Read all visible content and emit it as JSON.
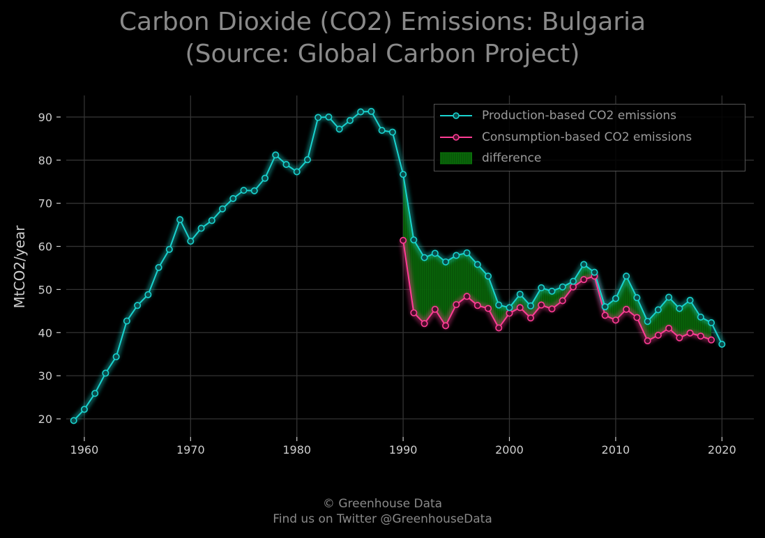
{
  "title": {
    "line1": "Carbon Dioxide (CO2) Emissions: Bulgaria",
    "line2": "(Source: Global Carbon Project)"
  },
  "footer": {
    "line1": "© Greenhouse Data",
    "line2": "Find us on Twitter @GreenhouseData"
  },
  "colors": {
    "production": "#19d3cf",
    "consumption": "#ff3d95",
    "difference": "#0a7a0a",
    "background": "#000000",
    "grid": "#333333"
  },
  "chart_data": {
    "type": "line",
    "title": "Carbon Dioxide (CO2) Emissions: Bulgaria (Source: Global Carbon Project)",
    "ylabel": "MtCO2/year",
    "xlabel": "",
    "xlim": [
      1958.3,
      2023.0
    ],
    "ylim": [
      15.8,
      95.0
    ],
    "xticks": [
      1960,
      1970,
      1980,
      1990,
      2000,
      2010,
      2020
    ],
    "yticks": [
      20,
      30,
      40,
      50,
      60,
      70,
      80,
      90
    ],
    "grid": true,
    "legend_position": "top-right",
    "legend": [
      "Production-based CO2 emissions",
      "Consumption-based CO2 emissions",
      "difference"
    ],
    "series": [
      {
        "name": "Production-based CO2 emissions",
        "x": [
          1959,
          1960,
          1961,
          1962,
          1963,
          1964,
          1965,
          1966,
          1967,
          1968,
          1969,
          1970,
          1971,
          1972,
          1973,
          1974,
          1975,
          1976,
          1977,
          1978,
          1979,
          1980,
          1981,
          1982,
          1983,
          1984,
          1985,
          1986,
          1987,
          1988,
          1989,
          1990,
          1991,
          1992,
          1993,
          1994,
          1995,
          1996,
          1997,
          1998,
          1999,
          2000,
          2001,
          2002,
          2003,
          2004,
          2005,
          2006,
          2007,
          2008,
          2009,
          2010,
          2011,
          2012,
          2013,
          2014,
          2015,
          2016,
          2017,
          2018,
          2019,
          2020
        ],
        "y": [
          19.6,
          22.2,
          25.9,
          30.6,
          34.4,
          42.7,
          46.3,
          48.8,
          55.1,
          59.3,
          66.2,
          61.2,
          64.2,
          66.0,
          68.7,
          71.1,
          73.0,
          72.9,
          75.8,
          81.2,
          79.0,
          77.3,
          80.1,
          89.9,
          90.0,
          87.2,
          89.2,
          91.2,
          91.3,
          86.9,
          86.5,
          76.7,
          61.5,
          57.4,
          58.4,
          56.4,
          57.9,
          58.5,
          55.8,
          53.1,
          46.4,
          45.8,
          48.9,
          46.2,
          50.4,
          49.6,
          50.6,
          51.9,
          55.8,
          54.0,
          46.0,
          47.9,
          53.1,
          48.1,
          42.6,
          45.3,
          48.2,
          45.6,
          47.5,
          43.6,
          42.3,
          37.3
        ]
      },
      {
        "name": "Consumption-based CO2 emissions",
        "x": [
          1990,
          1991,
          1992,
          1993,
          1994,
          1995,
          1996,
          1997,
          1998,
          1999,
          2000,
          2001,
          2002,
          2003,
          2004,
          2005,
          2006,
          2007,
          2008,
          2009,
          2010,
          2011,
          2012,
          2013,
          2014,
          2015,
          2016,
          2017,
          2018,
          2019
        ],
        "y": [
          61.4,
          44.6,
          42.1,
          45.4,
          41.6,
          46.5,
          48.4,
          46.3,
          45.6,
          41.1,
          44.5,
          45.8,
          43.4,
          46.4,
          45.5,
          47.4,
          50.6,
          52.3,
          53.1,
          44.0,
          42.9,
          45.4,
          43.5,
          38.1,
          39.4,
          41.0,
          38.8,
          39.9,
          39.2,
          38.3
        ]
      }
    ]
  }
}
